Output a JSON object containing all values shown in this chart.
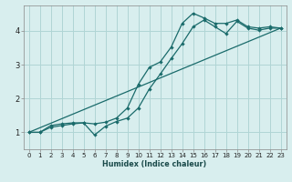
{
  "xlabel": "Humidex (Indice chaleur)",
  "bg_color": "#d8eeee",
  "grid_color": "#b0d5d5",
  "line_color": "#1a6b6b",
  "xlim": [
    -0.5,
    23.5
  ],
  "ylim": [
    0.5,
    4.75
  ],
  "xticks": [
    0,
    1,
    2,
    3,
    4,
    5,
    6,
    7,
    8,
    9,
    10,
    11,
    12,
    13,
    14,
    15,
    16,
    17,
    18,
    19,
    20,
    21,
    22,
    23
  ],
  "yticks": [
    1,
    2,
    3,
    4
  ],
  "line1_x": [
    0,
    1,
    2,
    3,
    4,
    5,
    6,
    7,
    8,
    9,
    10,
    11,
    12,
    13,
    14,
    15,
    16,
    17,
    18,
    19,
    20,
    21,
    22,
    23
  ],
  "line1_y": [
    1.0,
    1.0,
    1.2,
    1.25,
    1.28,
    1.28,
    1.25,
    1.3,
    1.42,
    1.72,
    2.42,
    2.92,
    3.08,
    3.52,
    4.22,
    4.52,
    4.38,
    4.22,
    4.22,
    4.32,
    4.12,
    4.08,
    4.12,
    4.08
  ],
  "line2_x": [
    0,
    1,
    2,
    3,
    4,
    5,
    6,
    7,
    8,
    9,
    10,
    11,
    12,
    13,
    14,
    15,
    16,
    17,
    18,
    19,
    20,
    21,
    22,
    23
  ],
  "line2_y": [
    1.0,
    1.0,
    1.15,
    1.2,
    1.25,
    1.28,
    0.92,
    1.18,
    1.32,
    1.42,
    1.72,
    2.28,
    2.72,
    3.18,
    3.62,
    4.12,
    4.32,
    4.12,
    3.92,
    4.28,
    4.08,
    4.02,
    4.08,
    4.08
  ],
  "line3_x": [
    0,
    23
  ],
  "line3_y": [
    1.0,
    4.08
  ]
}
